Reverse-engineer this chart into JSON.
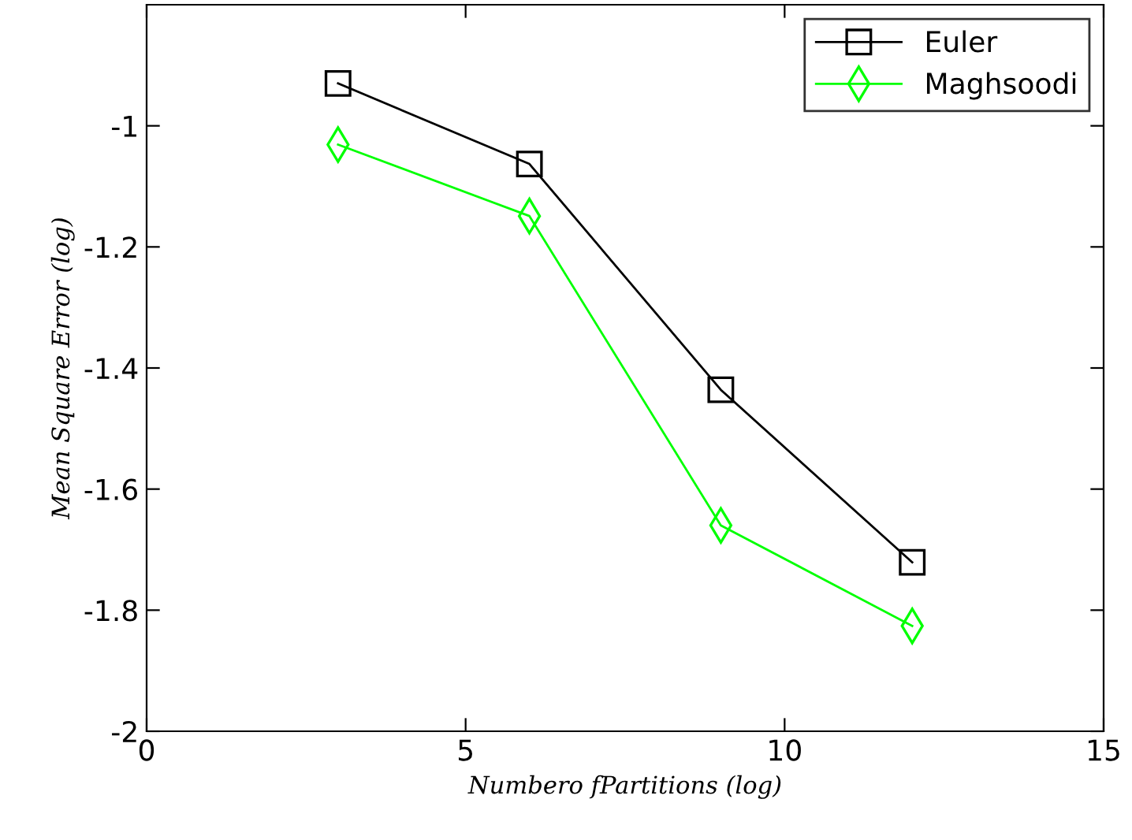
{
  "chart_data": {
    "type": "line",
    "xlabel": "Numbero fPartitions (log)",
    "ylabel": "Mean Square Error (log)",
    "x": [
      3,
      6,
      9,
      12
    ],
    "series": [
      {
        "name": "Euler",
        "color": "#000000",
        "marker": "square",
        "values": [
          -0.93,
          -1.063,
          -1.436,
          -1.721
        ]
      },
      {
        "name": "Maghsoodi",
        "color": "#00ff00",
        "marker": "diamond",
        "values": [
          -1.031,
          -1.149,
          -1.66,
          -1.826
        ]
      }
    ],
    "xlim": [
      0,
      15
    ],
    "xticks": [
      0,
      5,
      10,
      15
    ],
    "ylim": [
      -2,
      -0.8
    ],
    "yticks": [
      -2,
      -1.8,
      -1.6,
      -1.4,
      -1.2,
      -1
    ],
    "grid": false,
    "legend": "top right",
    "line_style": "solid"
  }
}
